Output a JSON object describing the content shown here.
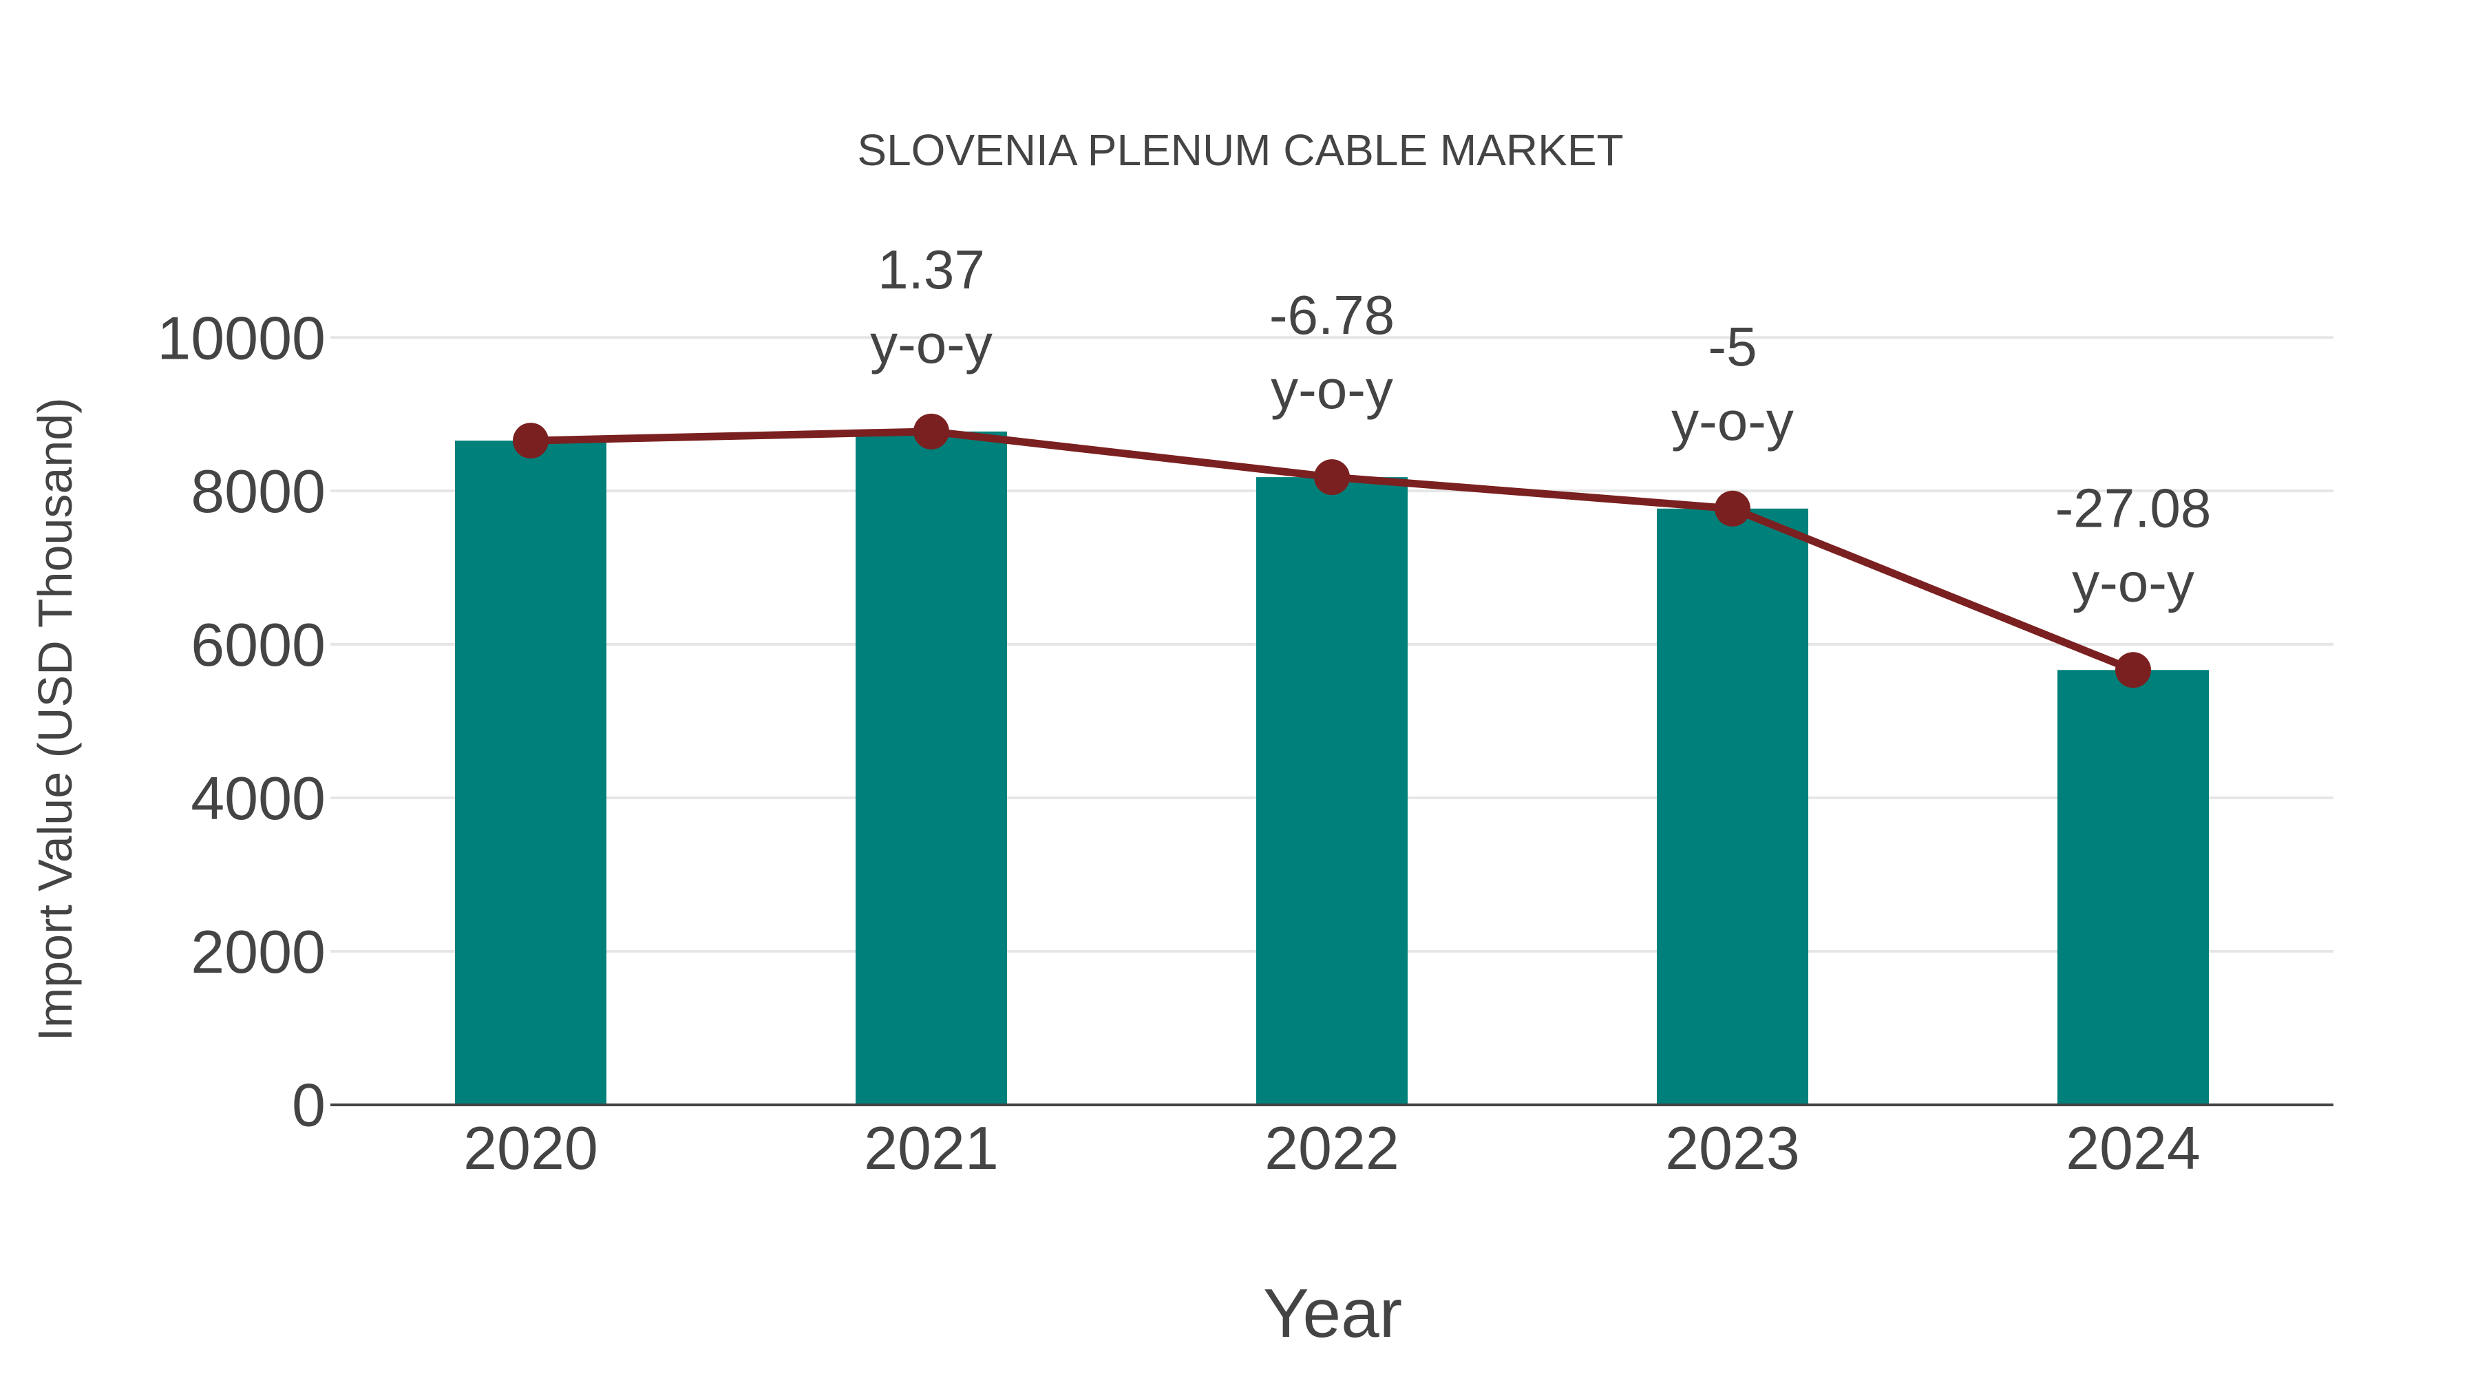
{
  "chart_data": {
    "type": "bar",
    "title": "SLOVENIA PLENUM CABLE MARKET",
    "xlabel": "Year",
    "ylabel": "Import Value (USD Thousand)",
    "categories": [
      "2020",
      "2021",
      "2022",
      "2023",
      "2024"
    ],
    "series": [
      {
        "name": "Import Value",
        "type": "bar",
        "color": "#00807a",
        "values": [
          8656,
          8775,
          8180,
          7770,
          5666
        ]
      },
      {
        "name": "Import Value (line)",
        "type": "line",
        "color": "#7b2020",
        "values": [
          8656,
          8775,
          8180,
          7770,
          5666
        ]
      }
    ],
    "annotations": [
      {
        "category": "2021",
        "value": "1.37",
        "suffix": "y-o-y"
      },
      {
        "category": "2022",
        "value": "-6.78",
        "suffix": "y-o-y"
      },
      {
        "category": "2023",
        "value": "-5",
        "suffix": "y-o-y"
      },
      {
        "category": "2024",
        "value": "-27.08",
        "suffix": "y-o-y"
      }
    ],
    "yticks": [
      "0",
      "2000",
      "4000",
      "6000",
      "8000",
      "10000"
    ],
    "ylim": [
      0,
      10000
    ],
    "grid": true,
    "legend": "none"
  },
  "colors": {
    "bar": "#00807a",
    "line": "#7b2020",
    "text": "#444444",
    "grid": "#e6e6e6"
  }
}
